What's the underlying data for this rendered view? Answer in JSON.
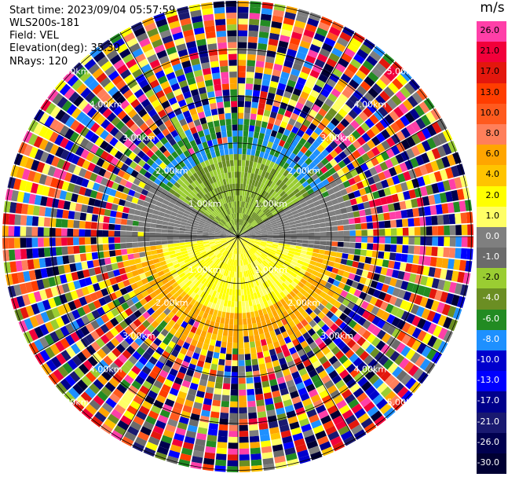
{
  "header": {
    "start_time": "Start time: 2023/09/04 05:57:59",
    "instrument": "WLS200s-181",
    "field": "Field: VEL",
    "elevation": "Elevation(deg): 35.30",
    "nrays": "NRays: 120"
  },
  "colorbar": {
    "unit": "m/s",
    "levels": [
      {
        "label": "26.0",
        "color": "#ff3fa8"
      },
      {
        "label": "21.0",
        "color": "#f2003a"
      },
      {
        "label": "17.0",
        "color": "#e3170d"
      },
      {
        "label": "13.0",
        "color": "#ff3d00"
      },
      {
        "label": "10.0",
        "color": "#ff5a1e"
      },
      {
        "label": "8.0",
        "color": "#ff7f5a"
      },
      {
        "label": "6.0",
        "color": "#ffa500"
      },
      {
        "label": "4.0",
        "color": "#ffc400"
      },
      {
        "label": "2.0",
        "color": "#ffff00"
      },
      {
        "label": "1.0",
        "color": "#ffff66"
      },
      {
        "label": "0.0",
        "color": "#7f7f7f"
      },
      {
        "label": "-1.0",
        "color": "#6b6b6b"
      },
      {
        "label": "-2.0",
        "color": "#9acd32"
      },
      {
        "label": "-4.0",
        "color": "#6b8e23"
      },
      {
        "label": "-6.0",
        "color": "#228b22"
      },
      {
        "label": "-8.0",
        "color": "#1e90ff"
      },
      {
        "label": "-10.0",
        "color": "#0000cd"
      },
      {
        "label": "-13.0",
        "color": "#0000ff"
      },
      {
        "label": "-17.0",
        "color": "#00008b"
      },
      {
        "label": "-21.0",
        "color": "#191970"
      },
      {
        "label": "-26.0",
        "color": "#00004f"
      },
      {
        "label": "-30.0",
        "color": "#000033"
      }
    ]
  },
  "range_rings": [
    {
      "label": "1.00km",
      "km": 1
    },
    {
      "label": "2.00km",
      "km": 2
    },
    {
      "label": "3.00km",
      "km": 3
    },
    {
      "label": "4.00km",
      "km": 4
    },
    {
      "label": "5.00km",
      "km": 5
    }
  ]
}
